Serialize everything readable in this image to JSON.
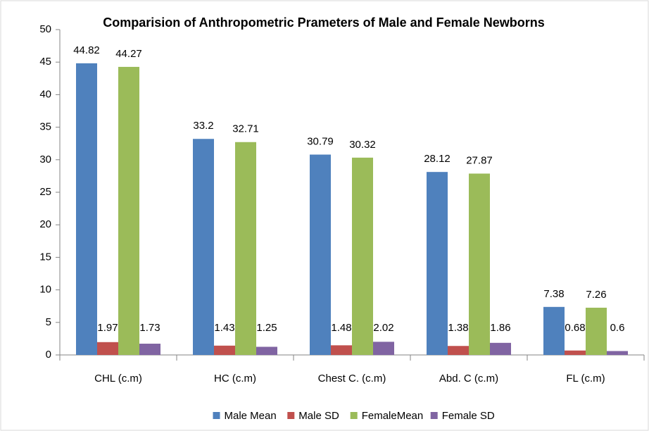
{
  "chart_data": {
    "type": "bar",
    "title": "Comparision of Anthropometric Prameters of Male and Female Newborns",
    "categories": [
      "CHL (c.m)",
      "HC (c.m)",
      "Chest C. (c.m)",
      "Abd. C (c.m)",
      "FL (c.m)"
    ],
    "series": [
      {
        "name": "Male Mean",
        "color": "#4f81bd",
        "values": [
          44.82,
          33.2,
          30.79,
          28.12,
          7.38
        ]
      },
      {
        "name": "Male SD",
        "color": "#c0504d",
        "values": [
          1.97,
          1.43,
          1.48,
          1.38,
          0.68
        ]
      },
      {
        "name": "FemaleMean",
        "color": "#9bbb59",
        "values": [
          44.27,
          32.71,
          30.32,
          27.87,
          7.26
        ]
      },
      {
        "name": "Female SD",
        "color": "#8064a2",
        "values": [
          1.73,
          1.25,
          2.02,
          1.86,
          0.6
        ]
      }
    ],
    "ylim": [
      0,
      50
    ],
    "yticks": [
      0,
      5,
      10,
      15,
      20,
      25,
      30,
      35,
      40,
      45,
      50
    ],
    "grid": false,
    "legend": "bottom"
  }
}
